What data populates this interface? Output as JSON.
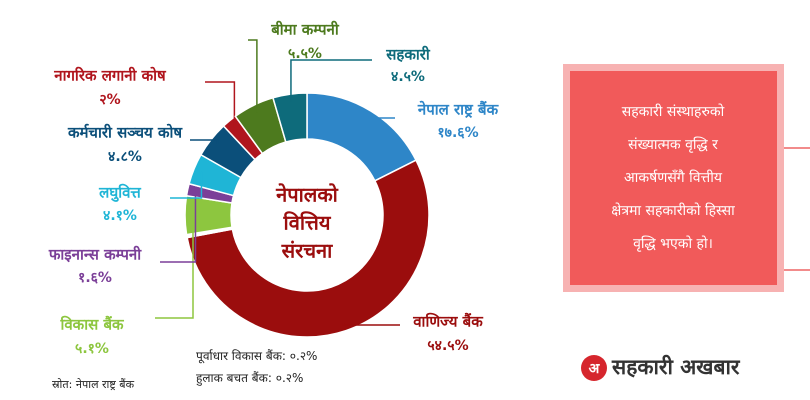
{
  "chart_data": {
    "type": "donut",
    "title_lines": [
      "नेपालको",
      "वित्तिय",
      "संरचना"
    ],
    "source": "स्रोत: नेपाल राष्ट्र बैंक",
    "categories": [
      "नेपाल राष्ट्र बैंक",
      "वाणिज्य बैंक",
      "पूर्वाधार विकास बैंक",
      "हुलाक बचत बैंक",
      "विकास बैंक",
      "फाइनान्स कम्पनी",
      "लघुवित्त",
      "कर्मचारी सञ्चय कोष",
      "नागरिक लगानी कोष",
      "बीमा कम्पनी",
      "सहकारी"
    ],
    "values": [
      17.6,
      54.5,
      0.2,
      0.2,
      5.1,
      1.6,
      4.1,
      4.8,
      2,
      5.5,
      4.5
    ],
    "value_labels": [
      "१७.६%",
      "५४.५%",
      "०.२%",
      "०.२%",
      "५.१%",
      "१.६%",
      "४.१%",
      "४.८%",
      "२%",
      "५.५%",
      "४.५%"
    ],
    "colors": [
      "#2e86c8",
      "#9b0d0d",
      "#7a7a7a",
      "#b36b00",
      "#8dc63f",
      "#7b3f98",
      "#1fb5d6",
      "#0b4f7a",
      "#b0151d",
      "#4d7a1e",
      "#0e6b7b"
    ]
  },
  "note": {
    "lines": [
      "सहकारी संस्थाहरुको",
      "संख्यात्मक वृद्धि र",
      "आकर्षणसँगै वित्तीय",
      "क्षेत्रमा सहकारीको हिस्सा",
      "वृद्धि भएको हो।"
    ]
  },
  "logo": {
    "icon": "अ",
    "text": "सहकारी अखबार"
  }
}
